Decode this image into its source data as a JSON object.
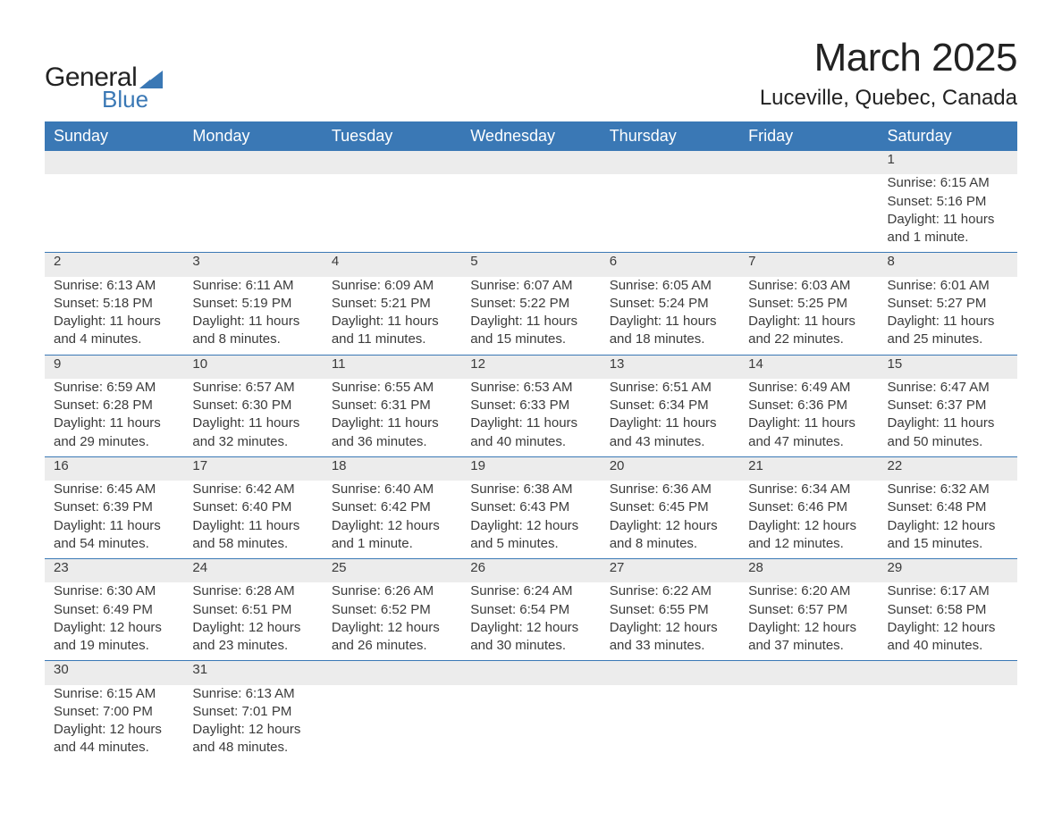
{
  "logo": {
    "textTop": "General",
    "textBottom": "Blue",
    "brand_color": "#3a78b5"
  },
  "title": {
    "month": "March 2025",
    "location": "Luceville, Quebec, Canada"
  },
  "styling": {
    "header_bg": "#3a78b5",
    "header_text_color": "#ffffff",
    "daynum_bg": "#ececec",
    "daynum_text_color": "#555555",
    "body_text_color": "#3b3b3b",
    "row_separator_color": "#3a78b5",
    "page_bg": "#ffffff",
    "title_fontsize": 44,
    "location_fontsize": 24,
    "header_fontsize": 18,
    "daynum_fontsize": 18,
    "cell_fontsize": 15
  },
  "weekdays": [
    "Sunday",
    "Monday",
    "Tuesday",
    "Wednesday",
    "Thursday",
    "Friday",
    "Saturday"
  ],
  "weeks": [
    {
      "nums": [
        "",
        "",
        "",
        "",
        "",
        "",
        "1"
      ],
      "cells": [
        null,
        null,
        null,
        null,
        null,
        null,
        {
          "sunrise": "Sunrise: 6:15 AM",
          "sunset": "Sunset: 5:16 PM",
          "day1": "Daylight: 11 hours",
          "day2": "and 1 minute."
        }
      ]
    },
    {
      "nums": [
        "2",
        "3",
        "4",
        "5",
        "6",
        "7",
        "8"
      ],
      "cells": [
        {
          "sunrise": "Sunrise: 6:13 AM",
          "sunset": "Sunset: 5:18 PM",
          "day1": "Daylight: 11 hours",
          "day2": "and 4 minutes."
        },
        {
          "sunrise": "Sunrise: 6:11 AM",
          "sunset": "Sunset: 5:19 PM",
          "day1": "Daylight: 11 hours",
          "day2": "and 8 minutes."
        },
        {
          "sunrise": "Sunrise: 6:09 AM",
          "sunset": "Sunset: 5:21 PM",
          "day1": "Daylight: 11 hours",
          "day2": "and 11 minutes."
        },
        {
          "sunrise": "Sunrise: 6:07 AM",
          "sunset": "Sunset: 5:22 PM",
          "day1": "Daylight: 11 hours",
          "day2": "and 15 minutes."
        },
        {
          "sunrise": "Sunrise: 6:05 AM",
          "sunset": "Sunset: 5:24 PM",
          "day1": "Daylight: 11 hours",
          "day2": "and 18 minutes."
        },
        {
          "sunrise": "Sunrise: 6:03 AM",
          "sunset": "Sunset: 5:25 PM",
          "day1": "Daylight: 11 hours",
          "day2": "and 22 minutes."
        },
        {
          "sunrise": "Sunrise: 6:01 AM",
          "sunset": "Sunset: 5:27 PM",
          "day1": "Daylight: 11 hours",
          "day2": "and 25 minutes."
        }
      ]
    },
    {
      "nums": [
        "9",
        "10",
        "11",
        "12",
        "13",
        "14",
        "15"
      ],
      "cells": [
        {
          "sunrise": "Sunrise: 6:59 AM",
          "sunset": "Sunset: 6:28 PM",
          "day1": "Daylight: 11 hours",
          "day2": "and 29 minutes."
        },
        {
          "sunrise": "Sunrise: 6:57 AM",
          "sunset": "Sunset: 6:30 PM",
          "day1": "Daylight: 11 hours",
          "day2": "and 32 minutes."
        },
        {
          "sunrise": "Sunrise: 6:55 AM",
          "sunset": "Sunset: 6:31 PM",
          "day1": "Daylight: 11 hours",
          "day2": "and 36 minutes."
        },
        {
          "sunrise": "Sunrise: 6:53 AM",
          "sunset": "Sunset: 6:33 PM",
          "day1": "Daylight: 11 hours",
          "day2": "and 40 minutes."
        },
        {
          "sunrise": "Sunrise: 6:51 AM",
          "sunset": "Sunset: 6:34 PM",
          "day1": "Daylight: 11 hours",
          "day2": "and 43 minutes."
        },
        {
          "sunrise": "Sunrise: 6:49 AM",
          "sunset": "Sunset: 6:36 PM",
          "day1": "Daylight: 11 hours",
          "day2": "and 47 minutes."
        },
        {
          "sunrise": "Sunrise: 6:47 AM",
          "sunset": "Sunset: 6:37 PM",
          "day1": "Daylight: 11 hours",
          "day2": "and 50 minutes."
        }
      ]
    },
    {
      "nums": [
        "16",
        "17",
        "18",
        "19",
        "20",
        "21",
        "22"
      ],
      "cells": [
        {
          "sunrise": "Sunrise: 6:45 AM",
          "sunset": "Sunset: 6:39 PM",
          "day1": "Daylight: 11 hours",
          "day2": "and 54 minutes."
        },
        {
          "sunrise": "Sunrise: 6:42 AM",
          "sunset": "Sunset: 6:40 PM",
          "day1": "Daylight: 11 hours",
          "day2": "and 58 minutes."
        },
        {
          "sunrise": "Sunrise: 6:40 AM",
          "sunset": "Sunset: 6:42 PM",
          "day1": "Daylight: 12 hours",
          "day2": "and 1 minute."
        },
        {
          "sunrise": "Sunrise: 6:38 AM",
          "sunset": "Sunset: 6:43 PM",
          "day1": "Daylight: 12 hours",
          "day2": "and 5 minutes."
        },
        {
          "sunrise": "Sunrise: 6:36 AM",
          "sunset": "Sunset: 6:45 PM",
          "day1": "Daylight: 12 hours",
          "day2": "and 8 minutes."
        },
        {
          "sunrise": "Sunrise: 6:34 AM",
          "sunset": "Sunset: 6:46 PM",
          "day1": "Daylight: 12 hours",
          "day2": "and 12 minutes."
        },
        {
          "sunrise": "Sunrise: 6:32 AM",
          "sunset": "Sunset: 6:48 PM",
          "day1": "Daylight: 12 hours",
          "day2": "and 15 minutes."
        }
      ]
    },
    {
      "nums": [
        "23",
        "24",
        "25",
        "26",
        "27",
        "28",
        "29"
      ],
      "cells": [
        {
          "sunrise": "Sunrise: 6:30 AM",
          "sunset": "Sunset: 6:49 PM",
          "day1": "Daylight: 12 hours",
          "day2": "and 19 minutes."
        },
        {
          "sunrise": "Sunrise: 6:28 AM",
          "sunset": "Sunset: 6:51 PM",
          "day1": "Daylight: 12 hours",
          "day2": "and 23 minutes."
        },
        {
          "sunrise": "Sunrise: 6:26 AM",
          "sunset": "Sunset: 6:52 PM",
          "day1": "Daylight: 12 hours",
          "day2": "and 26 minutes."
        },
        {
          "sunrise": "Sunrise: 6:24 AM",
          "sunset": "Sunset: 6:54 PM",
          "day1": "Daylight: 12 hours",
          "day2": "and 30 minutes."
        },
        {
          "sunrise": "Sunrise: 6:22 AM",
          "sunset": "Sunset: 6:55 PM",
          "day1": "Daylight: 12 hours",
          "day2": "and 33 minutes."
        },
        {
          "sunrise": "Sunrise: 6:20 AM",
          "sunset": "Sunset: 6:57 PM",
          "day1": "Daylight: 12 hours",
          "day2": "and 37 minutes."
        },
        {
          "sunrise": "Sunrise: 6:17 AM",
          "sunset": "Sunset: 6:58 PM",
          "day1": "Daylight: 12 hours",
          "day2": "and 40 minutes."
        }
      ]
    },
    {
      "nums": [
        "30",
        "31",
        "",
        "",
        "",
        "",
        ""
      ],
      "cells": [
        {
          "sunrise": "Sunrise: 6:15 AM",
          "sunset": "Sunset: 7:00 PM",
          "day1": "Daylight: 12 hours",
          "day2": "and 44 minutes."
        },
        {
          "sunrise": "Sunrise: 6:13 AM",
          "sunset": "Sunset: 7:01 PM",
          "day1": "Daylight: 12 hours",
          "day2": "and 48 minutes."
        },
        null,
        null,
        null,
        null,
        null
      ]
    }
  ]
}
